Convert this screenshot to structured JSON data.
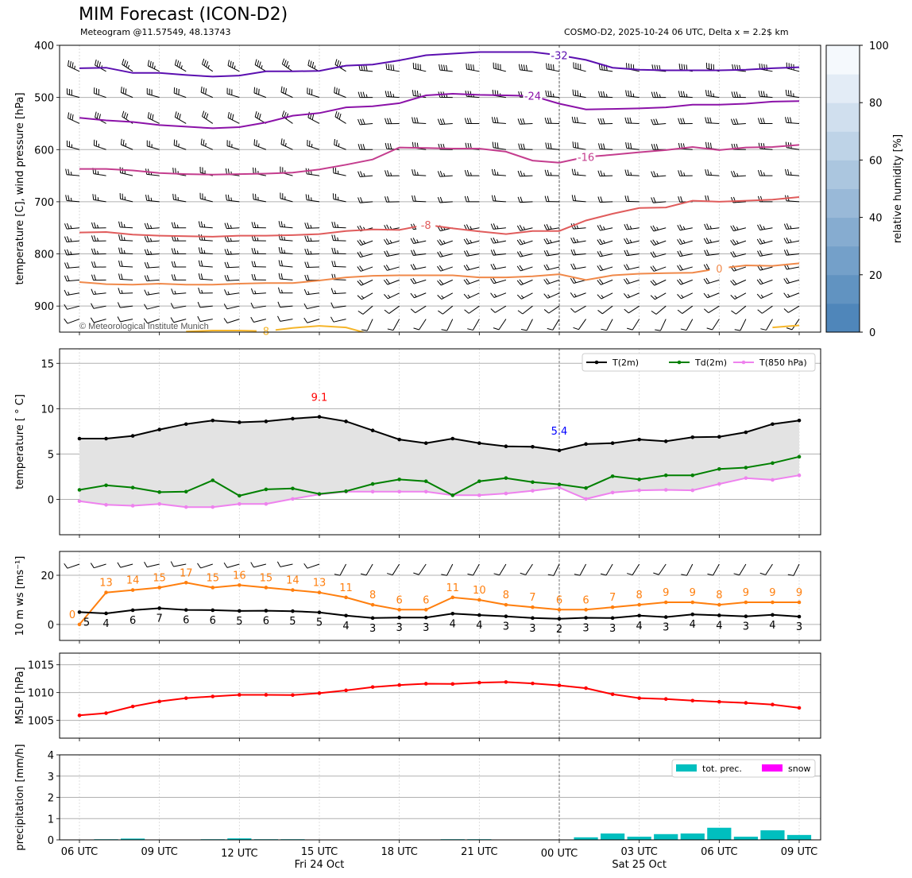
{
  "header": {
    "title": "MIM Forecast (ICON-D2)",
    "subtitle_left": "Meteogram @11.57549, 48.13743",
    "subtitle_right": "COSMO-D2, 2025-10-24 06 UTC, Delta x = 2.2$ km"
  },
  "time_axis": {
    "hours": [
      "06",
      "07",
      "08",
      "09",
      "10",
      "11",
      "12",
      "13",
      "14",
      "15",
      "16",
      "17",
      "18",
      "19",
      "20",
      "21",
      "22",
      "23",
      "00",
      "01",
      "02",
      "03",
      "04",
      "05",
      "06",
      "07",
      "08",
      "09"
    ],
    "tick_labels": [
      {
        "i": 0,
        "label": "06 UTC"
      },
      {
        "i": 3,
        "label": "09 UTC"
      },
      {
        "i": 6,
        "label": "12 UTC"
      },
      {
        "i": 9,
        "label": "15 UTC"
      },
      {
        "i": 12,
        "label": "18 UTC"
      },
      {
        "i": 15,
        "label": "21 UTC"
      },
      {
        "i": 18,
        "label": "00 UTC"
      },
      {
        "i": 21,
        "label": "03 UTC"
      },
      {
        "i": 24,
        "label": "06 UTC"
      },
      {
        "i": 27,
        "label": "09 UTC"
      }
    ],
    "date_labels": [
      {
        "i": 9,
        "label": "Fri 24 Oct"
      },
      {
        "i": 21,
        "label": "Sat 25 Oct"
      }
    ],
    "midnight_index": 18
  },
  "chart_data": [
    {
      "type": "contour",
      "name": "upper-air",
      "ylabel": "temperature [C], wind pressure [hPa]",
      "ylim": [
        950,
        400
      ],
      "yticks": [
        400,
        500,
        600,
        700,
        800,
        900
      ],
      "copyright": "© Meteorological Institute Munich",
      "colorbar": {
        "label": "relative humidity [%]",
        "ticks": [
          0,
          20,
          40,
          60,
          80,
          100
        ],
        "range": [
          0,
          100
        ],
        "levels": 10,
        "color_low": "#4f86ba",
        "color_high": "#f5f9fd"
      },
      "isotherms": [
        {
          "label": "-32",
          "color": "#5b0fb0",
          "label_index": 18,
          "p": [
            444,
            443,
            453,
            453,
            457,
            460,
            458,
            450,
            450,
            449,
            439,
            437,
            429,
            419,
            416,
            413,
            413,
            413,
            419,
            428,
            443,
            447,
            448,
            448,
            448,
            447,
            444,
            442
          ]
        },
        {
          "label": "-24",
          "color": "#8b12a8",
          "label_index": 17,
          "p": [
            539,
            544,
            547,
            553,
            556,
            559,
            557,
            548,
            535,
            530,
            519,
            517,
            511,
            496,
            493,
            495,
            496,
            497,
            512,
            523,
            522,
            521,
            519,
            514,
            514,
            512,
            508,
            507
          ]
        },
        {
          "label": "-16",
          "color": "#c43d8e",
          "label_index": 19,
          "p": [
            637,
            637,
            640,
            645,
            647,
            648,
            647,
            646,
            644,
            638,
            629,
            619,
            596,
            597,
            598,
            598,
            604,
            621,
            625,
            614,
            610,
            605,
            601,
            595,
            601,
            596,
            595,
            591
          ]
        },
        {
          "label": "-8",
          "color": "#e05c5c",
          "label_index": 13,
          "p": [
            759,
            758,
            763,
            765,
            766,
            767,
            765,
            765,
            764,
            762,
            756,
            753,
            754,
            744,
            751,
            757,
            762,
            756,
            756,
            736,
            723,
            712,
            711,
            698,
            700,
            698,
            696,
            691
          ]
        },
        {
          "label": "0",
          "color": "#f0894a",
          "label_index": 24,
          "p": [
            854,
            858,
            859,
            857,
            859,
            859,
            857,
            856,
            856,
            851,
            845,
            842,
            841,
            841,
            841,
            845,
            845,
            843,
            839,
            850,
            841,
            838,
            837,
            836,
            828,
            822,
            823,
            818
          ]
        },
        {
          "label": "8",
          "color": "#f5b52a",
          "label_index": 7,
          "p": [
            null,
            null,
            null,
            null,
            949,
            947,
            947,
            948,
            942,
            938,
            941,
            955,
            null,
            null,
            null,
            null,
            null,
            null,
            null,
            null,
            null,
            null,
            null,
            null,
            null,
            null,
            941,
            937
          ]
        }
      ],
      "wind_barbs": {
        "units": "kt",
        "switch_index": 11,
        "levels": [
          {
            "p": 450,
            "dir_a": 300,
            "spd_a": 35,
            "dir_b": 280,
            "spd_b": 40
          },
          {
            "p": 500,
            "dir_a": 290,
            "spd_a": 30,
            "dir_b": 275,
            "spd_b": 35
          },
          {
            "p": 550,
            "dir_a": 300,
            "spd_a": 30,
            "dir_b": 270,
            "spd_b": 30
          },
          {
            "p": 600,
            "dir_a": 290,
            "spd_a": 25,
            "dir_b": 275,
            "spd_b": 30
          },
          {
            "p": 650,
            "dir_a": 280,
            "spd_a": 25,
            "dir_b": 270,
            "spd_b": 25
          },
          {
            "p": 700,
            "dir_a": 280,
            "spd_a": 25,
            "dir_b": 270,
            "spd_b": 20
          },
          {
            "p": 750,
            "dir_a": 270,
            "spd_a": 25,
            "dir_b": 260,
            "spd_b": 25
          },
          {
            "p": 775,
            "dir_a": 270,
            "spd_a": 25,
            "dir_b": 255,
            "spd_b": 25
          },
          {
            "p": 800,
            "dir_a": 270,
            "spd_a": 25,
            "dir_b": 260,
            "spd_b": 20
          },
          {
            "p": 825,
            "dir_a": 270,
            "spd_a": 20,
            "dir_b": 255,
            "spd_b": 20
          },
          {
            "p": 850,
            "dir_a": 270,
            "spd_a": 20,
            "dir_b": 250,
            "spd_b": 20
          },
          {
            "p": 875,
            "dir_a": 265,
            "spd_a": 15,
            "dir_b": 245,
            "spd_b": 15
          },
          {
            "p": 900,
            "dir_a": 260,
            "spd_a": 10,
            "dir_b": 235,
            "spd_b": 10
          },
          {
            "p": 925,
            "dir_a": 255,
            "spd_a": 10,
            "dir_b": 210,
            "spd_b": 10
          }
        ]
      }
    },
    {
      "type": "line",
      "name": "temperature",
      "ylabel": "temperature [ ° C]",
      "ylim": [
        -3.9,
        16.6
      ],
      "yticks": [
        0,
        5,
        10,
        15
      ],
      "series": [
        {
          "name": "T(2m)",
          "color": "#000000",
          "values": [
            6.7,
            6.7,
            7.0,
            7.7,
            8.3,
            8.7,
            8.5,
            8.6,
            8.9,
            9.1,
            8.6,
            7.6,
            6.6,
            6.2,
            6.7,
            6.2,
            5.85,
            5.8,
            5.4,
            6.1,
            6.2,
            6.6,
            6.4,
            6.85,
            6.9,
            7.4,
            8.3,
            8.7
          ]
        },
        {
          "name": "Td(2m)",
          "color": "#008000",
          "values": [
            1.05,
            1.55,
            1.3,
            0.8,
            0.85,
            2.1,
            0.4,
            1.1,
            1.2,
            0.6,
            0.9,
            1.7,
            2.2,
            2.0,
            0.45,
            2.0,
            2.35,
            1.9,
            1.65,
            1.25,
            2.55,
            2.2,
            2.65,
            2.65,
            3.35,
            3.5,
            4.0,
            4.7
          ]
        },
        {
          "name": "T(850 hPa)",
          "color": "#ee82ee",
          "values": [
            -0.2,
            -0.6,
            -0.7,
            -0.5,
            -0.85,
            -0.85,
            -0.5,
            -0.5,
            0.05,
            0.55,
            0.85,
            0.85,
            0.85,
            0.85,
            0.45,
            0.45,
            0.65,
            0.95,
            1.3,
            0.05,
            0.75,
            1.0,
            1.05,
            1.0,
            1.7,
            2.35,
            2.15,
            2.65
          ]
        }
      ],
      "annotations": [
        {
          "text": "9.1",
          "index": 9,
          "value": 9.1,
          "color": "#ff0000"
        },
        {
          "text": "5.4",
          "index": 18,
          "value": 5.4,
          "color": "#0000ff"
        }
      ],
      "legend": "top-right"
    },
    {
      "type": "line",
      "name": "wind",
      "ylabel": "10 m ws [ms⁻¹]",
      "ylim": [
        -6.5,
        29.7
      ],
      "yticks": [
        0,
        20
      ],
      "series": [
        {
          "name": "gust",
          "color": "#ff7f0e",
          "values": [
            0,
            13,
            14,
            15,
            17,
            15,
            16,
            15,
            14,
            13,
            11,
            8,
            6,
            6,
            11,
            10,
            8,
            7,
            6,
            6,
            7,
            8,
            9,
            9,
            8,
            9,
            9,
            9
          ],
          "labels": [
            "0",
            "13",
            "14",
            "15",
            "17",
            "15",
            "16",
            "15",
            "14",
            "13",
            "11",
            "8",
            "6",
            "6",
            "11",
            "10",
            "8",
            "7",
            "6",
            "6",
            "7",
            "8",
            "9",
            "9",
            "8",
            "9",
            "9",
            "9"
          ]
        },
        {
          "name": "ws",
          "color": "#000000",
          "values": [
            5,
            4.5,
            5.8,
            6.6,
            5.9,
            5.8,
            5.5,
            5.6,
            5.4,
            4.9,
            3.6,
            2.6,
            2.8,
            2.8,
            4.4,
            3.8,
            3.3,
            2.6,
            2.3,
            2.7,
            2.6,
            3.6,
            3.0,
            4.1,
            3.7,
            3.3,
            3.9,
            3.2
          ],
          "labels": [
            "5",
            "4",
            "6",
            "7",
            "6",
            "6",
            "5",
            "6",
            "5",
            "5",
            "4",
            "3",
            "3",
            "3",
            "4",
            "4",
            "3",
            "3",
            "2",
            "3",
            "3",
            "4",
            "3",
            "4",
            "4",
            "3",
            "4",
            "3"
          ]
        }
      ],
      "barbs_10m": {
        "units": "kt",
        "switch_index": 10,
        "dir_a": 255,
        "spd_a": 10,
        "dir_b": 210,
        "spd_b": 10
      }
    },
    {
      "type": "line",
      "name": "mslp",
      "ylabel": "MSLP [hPa]",
      "ylim": [
        1001.8,
        1017.1
      ],
      "yticks": [
        1005,
        1010,
        1015
      ],
      "series": [
        {
          "name": "MSLP",
          "color": "#ff0000",
          "values": [
            1005.9,
            1006.3,
            1007.5,
            1008.4,
            1009.0,
            1009.3,
            1009.6,
            1009.6,
            1009.55,
            1009.9,
            1010.4,
            1011.0,
            1011.35,
            1011.6,
            1011.55,
            1011.8,
            1011.9,
            1011.65,
            1011.3,
            1010.8,
            1009.7,
            1009.0,
            1008.85,
            1008.55,
            1008.35,
            1008.15,
            1007.85,
            1007.25
          ]
        }
      ]
    },
    {
      "type": "bar",
      "name": "precipitation",
      "ylabel": "precipitation [mm/h]",
      "ylim": [
        0,
        4
      ],
      "yticks": [
        0,
        1,
        2,
        3,
        4
      ],
      "series": [
        {
          "name": "tot. prec.",
          "color": "#00bfbf",
          "values": [
            0,
            0.03,
            0.06,
            0,
            0,
            0.03,
            0.07,
            0.03,
            0.03,
            0,
            0,
            0,
            0,
            0,
            0.03,
            0.03,
            0,
            0,
            0,
            0.12,
            0.3,
            0.15,
            0.27,
            0.3,
            0.57,
            0.15,
            0.45,
            0.23
          ]
        },
        {
          "name": "snow",
          "color": "#ff00ff",
          "values": [
            0,
            0,
            0,
            0,
            0,
            0,
            0,
            0,
            0,
            0,
            0,
            0,
            0,
            0,
            0,
            0,
            0,
            0,
            0,
            0,
            0,
            0,
            0,
            0,
            0,
            0,
            0,
            0
          ]
        }
      ],
      "legend": "top-right"
    }
  ]
}
